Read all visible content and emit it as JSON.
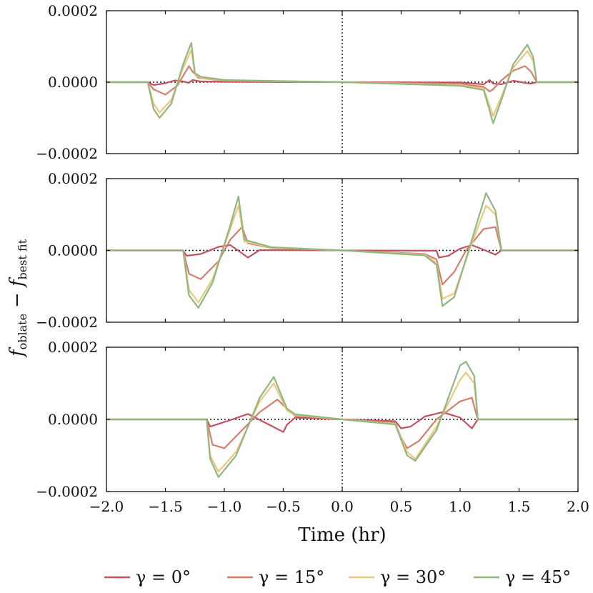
{
  "chart_data": {
    "type": "line",
    "xlabel": "Time (hr)",
    "ylabel": "f_oblate − f_best fit",
    "ylabel_parts": {
      "f1": "f",
      "sub1": "oblate",
      "minus": "−",
      "f2": "f",
      "sub2": "best fit"
    },
    "xlim": [
      -2.0,
      2.0
    ],
    "ylim": [
      -0.0002,
      0.0002
    ],
    "x_ticks": [
      -2.0,
      -1.5,
      -1.0,
      -0.5,
      0.0,
      0.5,
      1.0,
      1.5,
      2.0
    ],
    "x_tick_labels": [
      "−2.0",
      "−1.5",
      "−1.0",
      "−0.5",
      "0.0",
      "0.5",
      "1.0",
      "1.5",
      "2.0"
    ],
    "y_ticks": [
      -0.0002,
      0.0,
      0.0002
    ],
    "y_tick_labels": [
      "−0.0002",
      "0.0000",
      "0.0002"
    ],
    "reference_lines": {
      "horizontal_y": 0.0,
      "vertical_x": 0.0,
      "style": "dotted"
    },
    "legend": {
      "placement": "bottom-center",
      "entries": [
        "γ = 0°",
        "γ = 15°",
        "γ = 30°",
        "γ = 45°"
      ]
    },
    "series_styles": [
      {
        "name": "γ = 0°",
        "color": "#c2525f"
      },
      {
        "name": "γ = 15°",
        "color": "#d47f6c"
      },
      {
        "name": "γ = 30°",
        "color": "#ebc77f"
      },
      {
        "name": "γ = 45°",
        "color": "#8fb77f"
      }
    ],
    "panels": [
      {
        "name": "panel-1",
        "series": [
          {
            "name": "γ = 0°",
            "x": [
              -2.0,
              -1.65,
              -1.6,
              -1.5,
              -1.42,
              -1.35,
              -1.3,
              -1.27,
              -1.2,
              -1.0,
              0.0,
              1.0,
              1.2,
              1.25,
              1.28,
              1.35,
              1.45,
              1.55,
              1.6,
              1.65,
              2.0
            ],
            "y": [
              0,
              0,
              -8e-06,
              -3e-06,
              5e-06,
              2e-06,
              -2e-06,
              6e-06,
              2e-06,
              1e-06,
              0,
              -1e-06,
              -6e-06,
              6e-06,
              -4e-06,
              -6e-06,
              4e-06,
              -2e-06,
              -4e-06,
              0,
              0
            ]
          },
          {
            "name": "γ = 15°",
            "x": [
              -2.0,
              -1.65,
              -1.6,
              -1.5,
              -1.4,
              -1.3,
              -1.27,
              -1.22,
              -1.0,
              0.0,
              1.0,
              1.2,
              1.25,
              1.28,
              1.35,
              1.45,
              1.55,
              1.6,
              1.65,
              2.0
            ],
            "y": [
              0,
              0,
              -2e-05,
              -3.5e-05,
              -1e-05,
              4.5e-05,
              3e-05,
              1.2e-05,
              4e-06,
              0,
              -5e-06,
              -1.3e-05,
              -2.6e-05,
              -2e-05,
              5e-06,
              3.2e-05,
              4.5e-05,
              3e-05,
              0,
              0
            ]
          },
          {
            "name": "γ = 30°",
            "x": [
              -2.0,
              -1.65,
              -1.6,
              -1.55,
              -1.45,
              -1.35,
              -1.28,
              -1.25,
              -1.2,
              -1.0,
              0.0,
              1.0,
              1.2,
              1.25,
              1.28,
              1.35,
              1.45,
              1.57,
              1.62,
              1.65,
              2.0
            ],
            "y": [
              0,
              0,
              -6e-05,
              -8.5e-05,
              -5e-05,
              4e-05,
              9e-05,
              2.2e-05,
              1.2e-05,
              5e-06,
              0,
              -8e-06,
              -1.8e-05,
              -6.5e-05,
              -9.5e-05,
              -4e-05,
              4e-05,
              8.7e-05,
              6e-05,
              0,
              0
            ]
          },
          {
            "name": "γ = 45°",
            "x": [
              -2.0,
              -1.65,
              -1.6,
              -1.55,
              -1.45,
              -1.35,
              -1.28,
              -1.25,
              -1.2,
              -1.0,
              0.0,
              1.0,
              1.2,
              1.25,
              1.28,
              1.35,
              1.45,
              1.57,
              1.62,
              1.65,
              2.0
            ],
            "y": [
              0,
              0,
              -7.5e-05,
              -0.0001,
              -6e-05,
              5e-05,
              0.00011,
              2.5e-05,
              1.5e-05,
              6e-06,
              0,
              -1e-05,
              -2.2e-05,
              -8e-05,
              -0.000115,
              -5e-05,
              5e-05,
              0.000105,
              7e-05,
              0,
              0
            ]
          }
        ]
      },
      {
        "name": "panel-2",
        "series": [
          {
            "name": "γ = 0°",
            "x": [
              -2.0,
              -1.35,
              -1.32,
              -1.2,
              -1.05,
              -0.95,
              -0.85,
              -0.8,
              -0.7,
              0.0,
              0.8,
              0.82,
              0.9,
              1.0,
              1.1,
              1.2,
              1.3,
              1.35,
              2.0
            ],
            "y": [
              0,
              0,
              -1.5e-05,
              -1e-05,
              1e-05,
              1.5e-05,
              -8e-06,
              -2e-05,
              1e-06,
              0,
              -1e-06,
              -2e-05,
              -1.5e-05,
              5e-06,
              1.5e-05,
              2e-06,
              -1.2e-05,
              0,
              0
            ]
          },
          {
            "name": "γ = 15°",
            "x": [
              -2.0,
              -1.35,
              -1.3,
              -1.2,
              -1.05,
              -0.95,
              -0.85,
              -0.8,
              -0.6,
              0.0,
              0.7,
              0.8,
              0.85,
              0.95,
              1.05,
              1.2,
              1.3,
              1.35,
              2.0
            ],
            "y": [
              0,
              0,
              -6.5e-05,
              -8e-05,
              -3e-05,
              3e-05,
              6.5e-05,
              2e-05,
              7e-06,
              0,
              -1e-05,
              -2.5e-05,
              -9.5e-05,
              -6e-05,
              0,
              6e-05,
              6.5e-05,
              0,
              0
            ]
          },
          {
            "name": "γ = 30°",
            "x": [
              -2.0,
              -1.35,
              -1.3,
              -1.22,
              -1.1,
              -0.95,
              -0.88,
              -0.83,
              -0.6,
              0.0,
              0.7,
              0.8,
              0.85,
              0.95,
              1.1,
              1.22,
              1.3,
              1.35,
              2.0
            ],
            "y": [
              0,
              0,
              -0.00011,
              -0.000145,
              -8e-05,
              6e-05,
              0.000125,
              2.5e-05,
              8e-06,
              0,
              -1.2e-05,
              -3.5e-05,
              -0.000135,
              -0.00012,
              2e-05,
              0.000125,
              0.0001,
              0,
              0
            ]
          },
          {
            "name": "γ = 45°",
            "x": [
              -2.0,
              -1.35,
              -1.3,
              -1.22,
              -1.1,
              -0.95,
              -0.88,
              -0.83,
              -0.6,
              0.0,
              0.7,
              0.8,
              0.85,
              0.95,
              1.1,
              1.22,
              1.3,
              1.35,
              2.0
            ],
            "y": [
              0,
              0,
              -0.000125,
              -0.00016,
              -9e-05,
              7e-05,
              0.00015,
              3e-05,
              9e-06,
              0,
              -1.4e-05,
              -4e-05,
              -0.000155,
              -0.00013,
              3e-05,
              0.00016,
              0.00011,
              0,
              0
            ]
          }
        ]
      },
      {
        "name": "panel-3",
        "series": [
          {
            "name": "γ = 0°",
            "x": [
              -2.0,
              -1.15,
              -1.12,
              -0.95,
              -0.8,
              -0.6,
              -0.5,
              -0.47,
              -0.4,
              0.0,
              0.45,
              0.5,
              0.58,
              0.7,
              0.85,
              1.0,
              1.1,
              1.15,
              2.0
            ],
            "y": [
              0,
              0,
              -2e-05,
              -2e-06,
              1.5e-05,
              -1.8e-05,
              -3.5e-05,
              -1.5e-05,
              5e-06,
              0,
              -5e-06,
              -2.5e-05,
              -2e-05,
              8e-06,
              2e-05,
              5e-06,
              -2.5e-05,
              0,
              0
            ]
          },
          {
            "name": "γ = 15°",
            "x": [
              -2.0,
              -1.15,
              -1.1,
              -1.0,
              -0.85,
              -0.7,
              -0.55,
              -0.47,
              -0.4,
              0.0,
              0.45,
              0.5,
              0.55,
              0.65,
              0.8,
              1.0,
              1.1,
              1.15,
              2.0
            ],
            "y": [
              0,
              0,
              -7e-05,
              -8e-05,
              -3e-05,
              2e-05,
              5.5e-05,
              3e-05,
              1e-05,
              0,
              -1e-05,
              -5e-05,
              -8e-05,
              -6e-05,
              0,
              5e-05,
              6e-05,
              0,
              0
            ]
          },
          {
            "name": "γ = 30°",
            "x": [
              -2.0,
              -1.15,
              -1.12,
              -1.05,
              -0.9,
              -0.7,
              -0.58,
              -0.47,
              -0.4,
              0.0,
              0.45,
              0.55,
              0.62,
              0.8,
              1.0,
              1.05,
              1.12,
              1.15,
              2.0
            ],
            "y": [
              0,
              0,
              -0.0001,
              -0.000145,
              -9e-05,
              5e-05,
              0.0001,
              2.5e-05,
              1.2e-05,
              0,
              -1.2e-05,
              -9e-05,
              -0.00011,
              -2e-05,
              0.00011,
              0.00013,
              0.0001,
              0,
              0
            ]
          },
          {
            "name": "γ = 45°",
            "x": [
              -2.0,
              -1.15,
              -1.12,
              -1.05,
              -0.9,
              -0.7,
              -0.58,
              -0.47,
              -0.4,
              0.0,
              0.45,
              0.55,
              0.62,
              0.8,
              1.0,
              1.05,
              1.12,
              1.15,
              2.0
            ],
            "y": [
              0,
              0,
              -0.00011,
              -0.00016,
              -0.0001,
              6e-05,
              0.000118,
              3e-05,
              1.4e-05,
              0,
              -1.4e-05,
              -0.0001,
              -0.000115,
              -3e-05,
              0.00015,
              0.00016,
              0.00012,
              0,
              0
            ]
          }
        ]
      }
    ]
  }
}
